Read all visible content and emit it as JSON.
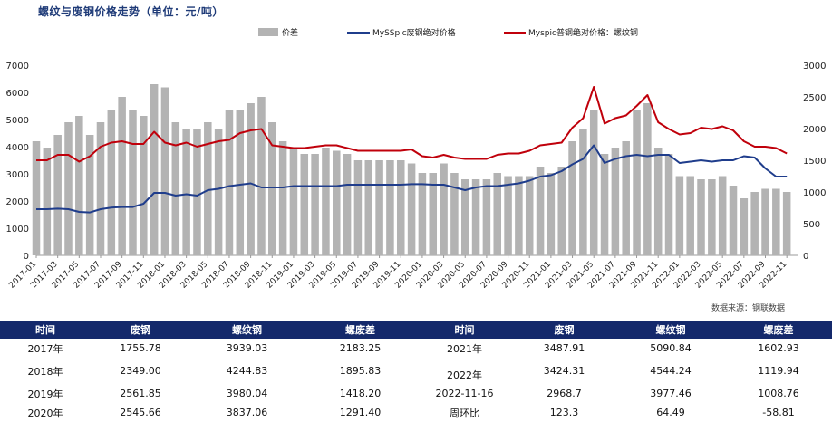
{
  "title": "螺纹与废钢价格走势（单位：元/吨）",
  "source": "数据来源：钢联数据",
  "colors": {
    "spread": "#b3b3b3",
    "scrap": "#1f3d8c",
    "rebar": "#c0000b",
    "header": "#14296b"
  },
  "chart_data": {
    "type": "bar+line",
    "legend": [
      "价差",
      "MySSpic废钢绝对价格",
      "Myspic普钢绝对价格：螺纹钢"
    ],
    "left_axis": {
      "ylim": [
        0,
        7000
      ],
      "ticks": [
        0,
        1000,
        2000,
        3000,
        4000,
        5000,
        6000,
        7000
      ]
    },
    "right_axis": {
      "ylim": [
        0,
        3000
      ],
      "ticks": [
        0,
        500,
        1000,
        1500,
        2000,
        2500,
        3000
      ]
    },
    "x_ticks": [
      "2017-01",
      "2017-03",
      "2017-05",
      "2017-07",
      "2017-09",
      "2017-11",
      "2018-01",
      "2018-03",
      "2018-05",
      "2018-07",
      "2018-09",
      "2018-11",
      "2019-01",
      "2019-03",
      "2019-05",
      "2019-07",
      "2019-09",
      "2019-11",
      "2020-01",
      "2020-03",
      "2020-05",
      "2020-07",
      "2020-09",
      "2020-11",
      "2021-01",
      "2021-03",
      "2021-05",
      "2021-07",
      "2021-09",
      "2021-11",
      "2022-01",
      "2022-03",
      "2022-05",
      "2022-07",
      "2022-09",
      "2022-11"
    ],
    "x_range": [
      "2017-01",
      "2022-12"
    ],
    "monthly_x": [
      "2017-01",
      "2017-02",
      "2017-03",
      "2017-04",
      "2017-05",
      "2017-06",
      "2017-07",
      "2017-08",
      "2017-09",
      "2017-10",
      "2017-11",
      "2017-12",
      "2018-01",
      "2018-02",
      "2018-03",
      "2018-04",
      "2018-05",
      "2018-06",
      "2018-07",
      "2018-08",
      "2018-09",
      "2018-10",
      "2018-11",
      "2018-12",
      "2019-01",
      "2019-02",
      "2019-03",
      "2019-04",
      "2019-05",
      "2019-06",
      "2019-07",
      "2019-08",
      "2019-09",
      "2019-10",
      "2019-11",
      "2019-12",
      "2020-01",
      "2020-02",
      "2020-03",
      "2020-04",
      "2020-05",
      "2020-06",
      "2020-07",
      "2020-08",
      "2020-09",
      "2020-10",
      "2020-11",
      "2020-12",
      "2021-01",
      "2021-02",
      "2021-03",
      "2021-04",
      "2021-05",
      "2021-06",
      "2021-07",
      "2021-08",
      "2021-09",
      "2021-10",
      "2021-11",
      "2021-12",
      "2022-01",
      "2022-02",
      "2022-03",
      "2022-04",
      "2022-05",
      "2022-06",
      "2022-07",
      "2022-08",
      "2022-09",
      "2022-10",
      "2022-11"
    ],
    "series": [
      {
        "name": "价差",
        "axis": "right",
        "kind": "bar",
        "values": [
          1800,
          1700,
          1900,
          2100,
          2200,
          1900,
          2100,
          2300,
          2500,
          2300,
          2200,
          2700,
          2650,
          2100,
          2000,
          2000,
          2100,
          2000,
          2300,
          2300,
          2400,
          2500,
          2100,
          1800,
          1700,
          1600,
          1600,
          1700,
          1650,
          1600,
          1500,
          1500,
          1500,
          1500,
          1500,
          1450,
          1300,
          1300,
          1450,
          1300,
          1200,
          1200,
          1200,
          1300,
          1250,
          1250,
          1250,
          1400,
          1300,
          1400,
          1800,
          2000,
          2300,
          1600,
          1700,
          1800,
          2300,
          2400,
          1700,
          1600,
          1250,
          1250,
          1200,
          1200,
          1250,
          1100,
          900,
          1000,
          1050,
          1050,
          1000
        ]
      },
      {
        "name": "MySSpic废钢绝对价格",
        "axis": "left",
        "kind": "line",
        "values": [
          1700,
          1700,
          1720,
          1700,
          1600,
          1580,
          1700,
          1760,
          1780,
          1780,
          1900,
          2300,
          2300,
          2200,
          2250,
          2200,
          2400,
          2450,
          2550,
          2600,
          2650,
          2500,
          2500,
          2500,
          2550,
          2550,
          2550,
          2550,
          2550,
          2600,
          2600,
          2600,
          2600,
          2600,
          2600,
          2620,
          2620,
          2600,
          2600,
          2500,
          2400,
          2500,
          2550,
          2550,
          2600,
          2650,
          2750,
          2900,
          2950,
          3100,
          3350,
          3550,
          4050,
          3400,
          3550,
          3650,
          3700,
          3650,
          3700,
          3700,
          3400,
          3450,
          3500,
          3450,
          3500,
          3500,
          3650,
          3600,
          3200,
          2900,
          2900
        ]
      },
      {
        "name": "Myspic普钢绝对价格：螺纹钢",
        "axis": "left",
        "kind": "line",
        "values": [
          3500,
          3500,
          3700,
          3700,
          3450,
          3650,
          4000,
          4150,
          4200,
          4100,
          4100,
          4550,
          4150,
          4050,
          4150,
          4000,
          4100,
          4200,
          4250,
          4500,
          4600,
          4650,
          4050,
          4000,
          3950,
          3950,
          4000,
          4050,
          4050,
          3950,
          3850,
          3850,
          3850,
          3850,
          3850,
          3900,
          3650,
          3600,
          3700,
          3600,
          3550,
          3550,
          3550,
          3700,
          3750,
          3750,
          3850,
          4050,
          4100,
          4150,
          4700,
          5050,
          6200,
          4850,
          5050,
          5150,
          5500,
          5900,
          4900,
          4650,
          4450,
          4500,
          4700,
          4650,
          4750,
          4600,
          4200,
          4000,
          4000,
          3950,
          3750
        ]
      }
    ]
  },
  "table": {
    "headers": [
      "时间",
      "废钢",
      "螺纹钢",
      "螺废差",
      "时间",
      "废钢",
      "螺纹钢",
      "螺废差"
    ],
    "rows": [
      [
        "2017年",
        "1755.78",
        "3939.03",
        "2183.25",
        "2021年",
        "3487.91",
        "5090.84",
        "1602.93"
      ],
      [
        "2018年",
        "2349.00",
        "4244.83",
        "1895.83",
        "2022年",
        "3424.31",
        "4544.24",
        "1119.94"
      ],
      [
        "2019年",
        "2561.85",
        "3980.04",
        "1418.20",
        "2022-11-16",
        "2968.7",
        "3977.46",
        "1008.76"
      ],
      [
        "2020年",
        "2545.66",
        "3837.06",
        "1291.40",
        "周环比",
        "123.3",
        "64.49",
        "-58.81"
      ]
    ]
  }
}
